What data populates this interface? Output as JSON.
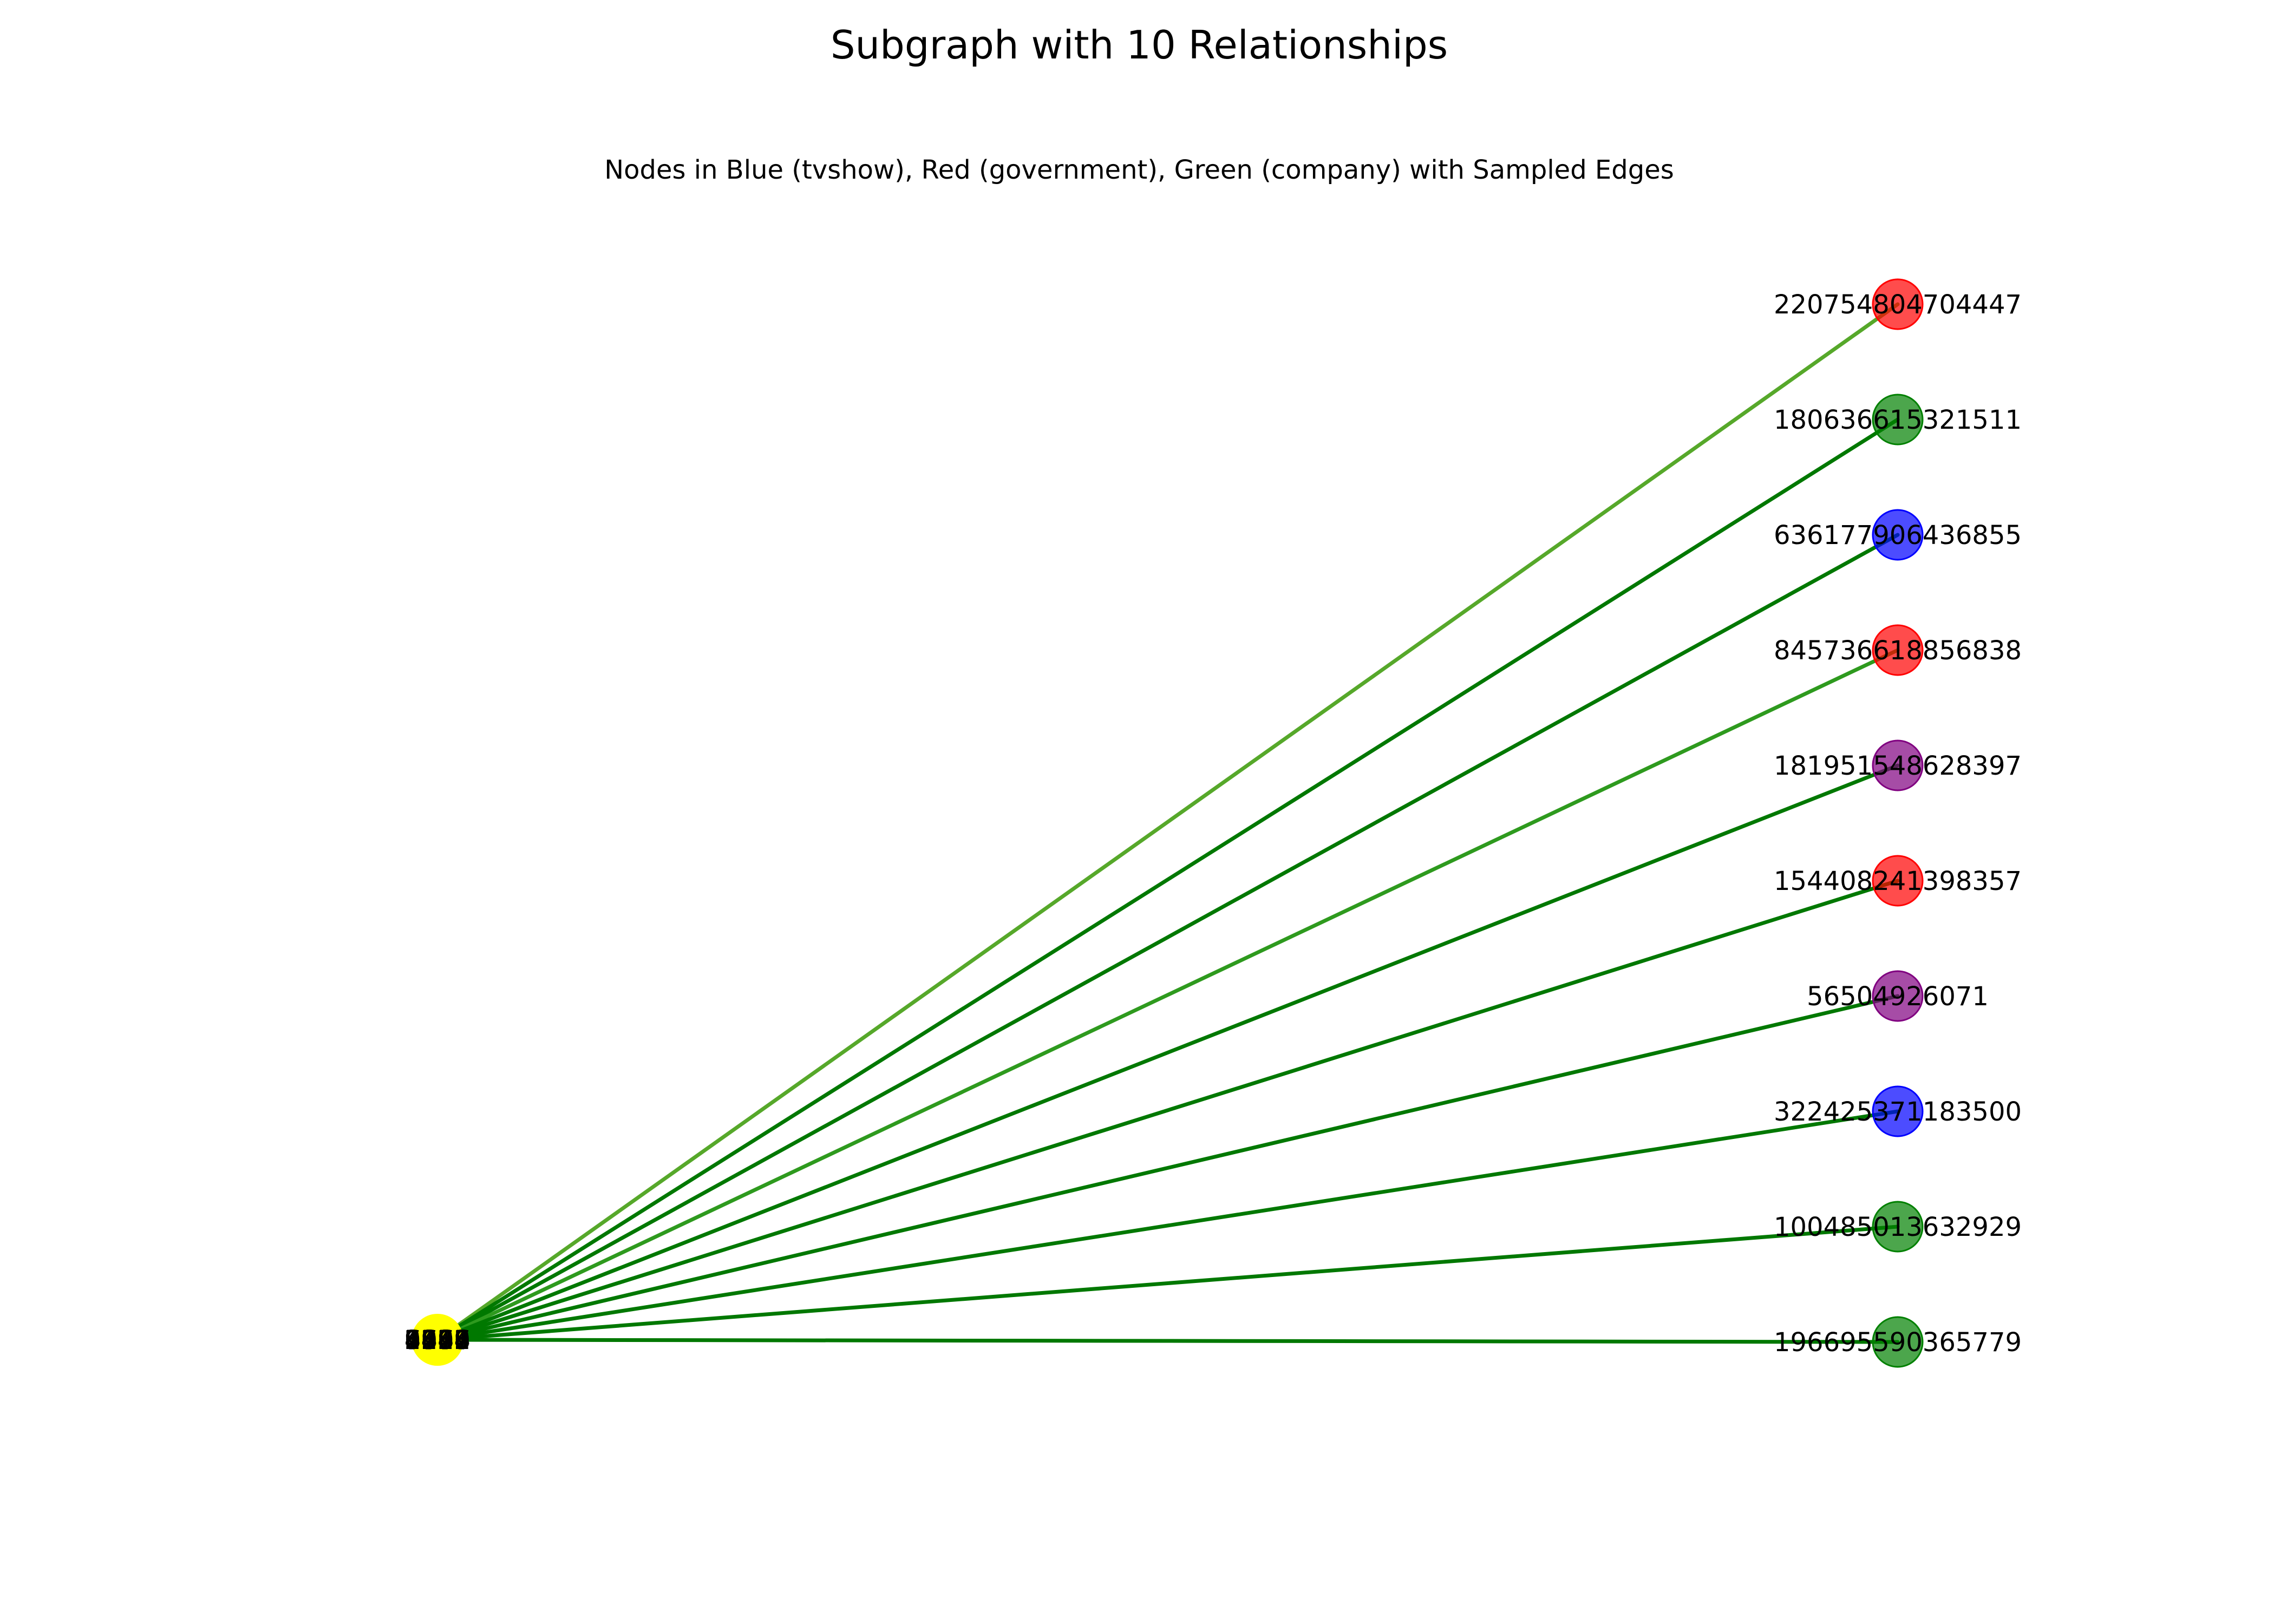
{
  "figure": {
    "title": "Subgraph with 10 Relationships",
    "subtitle": "Nodes in Blue (tvshow), Red (government), Green (company) with Sampled Edges"
  },
  "colors": {
    "hub_node": "#ffff00",
    "red_node": "#ff0000",
    "green_node": "#008000",
    "blue_node": "#0000ff",
    "purple_node": "#800080",
    "edge_default": "#007800",
    "edge_light": "#2e9a1e",
    "edge_lightest": "#56a82a"
  },
  "graph": {
    "hub": {
      "id": "hub",
      "color_key": "hub_node",
      "stacked_label_fragments": [
        "2",
        "3",
        "5",
        "8",
        "1",
        "9",
        "4",
        "6",
        "7",
        "0"
      ]
    },
    "nodes": [
      {
        "id": "220754804704447",
        "label": "220754804704447",
        "color_key": "red_node",
        "order": 0
      },
      {
        "id": "180636615321511",
        "label": "180636615321511",
        "color_key": "green_node",
        "order": 1
      },
      {
        "id": "636177906436855",
        "label": "636177906436855",
        "color_key": "blue_node",
        "order": 2
      },
      {
        "id": "845736618856838",
        "label": "845736618856838",
        "color_key": "red_node",
        "order": 3
      },
      {
        "id": "181951548628397",
        "label": "181951548628397",
        "color_key": "purple_node",
        "order": 4
      },
      {
        "id": "154408241398357",
        "label": "154408241398357",
        "color_key": "red_node",
        "order": 5
      },
      {
        "id": "56504926071",
        "label": "56504926071",
        "color_key": "purple_node",
        "order": 6
      },
      {
        "id": "322425371183500",
        "label": "322425371183500",
        "color_key": "blue_node",
        "order": 7
      },
      {
        "id": "100485013632929",
        "label": "100485013632929",
        "color_key": "green_node",
        "order": 8
      },
      {
        "id": "196695590365779",
        "label": "196695590365779",
        "color_key": "green_node",
        "order": 9
      }
    ],
    "edges": [
      {
        "source": "hub",
        "target": "220754804704447",
        "color_key": "edge_lightest"
      },
      {
        "source": "hub",
        "target": "180636615321511",
        "color_key": "edge_default"
      },
      {
        "source": "hub",
        "target": "636177906436855",
        "color_key": "edge_default"
      },
      {
        "source": "hub",
        "target": "845736618856838",
        "color_key": "edge_light"
      },
      {
        "source": "hub",
        "target": "181951548628397",
        "color_key": "edge_default"
      },
      {
        "source": "hub",
        "target": "154408241398357",
        "color_key": "edge_default"
      },
      {
        "source": "hub",
        "target": "56504926071",
        "color_key": "edge_default"
      },
      {
        "source": "hub",
        "target": "322425371183500",
        "color_key": "edge_default"
      },
      {
        "source": "hub",
        "target": "100485013632929",
        "color_key": "edge_default"
      },
      {
        "source": "hub",
        "target": "196695590365779",
        "color_key": "edge_default"
      }
    ]
  }
}
